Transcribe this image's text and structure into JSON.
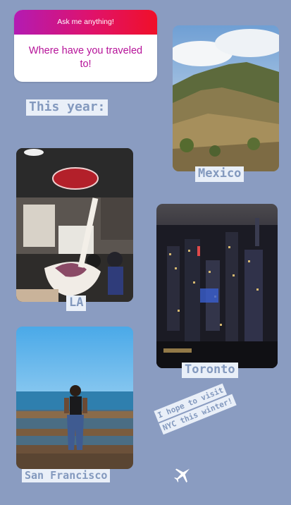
{
  "question_sticker": {
    "header": "Ask me anything!",
    "question": "Where have you traveled to!"
  },
  "labels": {
    "this_year": "This year:",
    "mexico": "Mexico",
    "la": "LA",
    "toronto": "Toronto",
    "san_francisco": "San Francisco"
  },
  "note": {
    "line1": "I hope to visit",
    "line2": "NYC this winter!"
  },
  "icons": [
    "airplane-icon"
  ],
  "colors": {
    "background": "#8a9cc1",
    "label_bg": "#e9eff8",
    "label_text": "#8399be",
    "sticker_gradient_start": "#b31bb3",
    "sticker_gradient_end": "#f01028",
    "question_text": "#b61299"
  }
}
